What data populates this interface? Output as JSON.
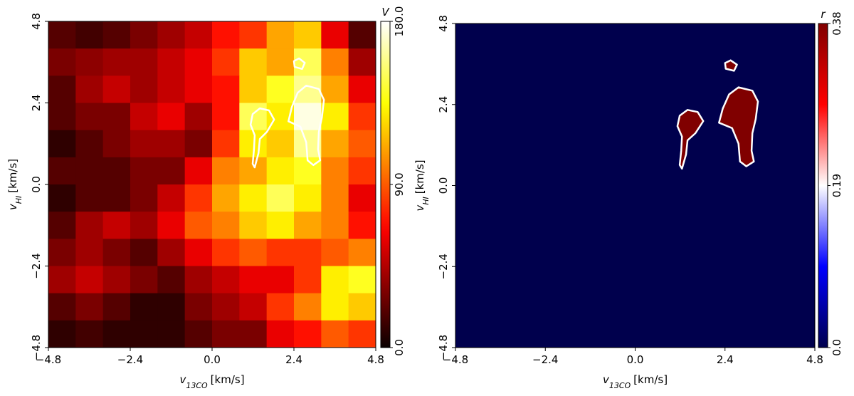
{
  "chart_data": [
    {
      "type": "heatmap",
      "colormap": "hot",
      "colorbar_label": "V",
      "xlabel": {
        "symbol": "v",
        "subscript": "13CO",
        "unit": "[km/s]"
      },
      "ylabel": {
        "symbol": "v",
        "subscript": "HI",
        "unit": "[km/s]"
      },
      "xlim": [
        -4.8,
        4.8
      ],
      "ylim": [
        -4.8,
        4.8
      ],
      "xticks": [
        {
          "value": -4.8,
          "label": "−4.8"
        },
        {
          "value": -2.4,
          "label": "−2.4"
        },
        {
          "value": 0,
          "label": "0.0"
        },
        2.4,
        4.8
      ],
      "yticks": [
        {
          "value": -4.8,
          "label": "−4.8"
        },
        {
          "value": -2.4,
          "label": "−2.4"
        },
        {
          "value": 0,
          "label": "0.0"
        },
        2.4,
        4.8
      ],
      "clim": [
        0,
        180
      ],
      "cticks": [
        {
          "value": 0,
          "label": "0.0"
        },
        {
          "value": 90,
          "label": "90.0"
        },
        {
          "value": 180,
          "label": "180.0"
        }
      ],
      "values": [
        [
          20,
          15,
          20,
          30,
          40,
          50,
          70,
          80,
          110,
          120,
          60,
          20
        ],
        [
          30,
          35,
          40,
          40,
          50,
          60,
          80,
          120,
          110,
          150,
          100,
          40
        ],
        [
          20,
          40,
          50,
          40,
          50,
          60,
          70,
          120,
          140,
          160,
          110,
          60
        ],
        [
          20,
          30,
          30,
          50,
          60,
          40,
          70,
          150,
          130,
          175,
          130,
          80
        ],
        [
          10,
          20,
          30,
          40,
          40,
          30,
          80,
          130,
          120,
          160,
          110,
          90
        ],
        [
          20,
          20,
          20,
          30,
          30,
          60,
          100,
          110,
          130,
          140,
          100,
          80
        ],
        [
          10,
          20,
          20,
          30,
          50,
          80,
          110,
          130,
          150,
          130,
          100,
          60
        ],
        [
          20,
          40,
          50,
          40,
          60,
          90,
          100,
          120,
          130,
          110,
          100,
          70
        ],
        [
          30,
          40,
          30,
          20,
          40,
          60,
          80,
          90,
          80,
          80,
          90,
          100
        ],
        [
          40,
          50,
          40,
          30,
          20,
          40,
          50,
          60,
          60,
          80,
          130,
          140
        ],
        [
          20,
          30,
          20,
          10,
          10,
          30,
          40,
          50,
          80,
          100,
          130,
          120
        ],
        [
          10,
          15,
          10,
          10,
          10,
          20,
          30,
          30,
          60,
          70,
          90,
          80
        ]
      ],
      "contours": [
        {
          "x": [
            2.76,
            3.13,
            3.28,
            3.22,
            3.13,
            3.11,
            3.17,
            2.97,
            2.8,
            2.76,
            2.59,
            2.24,
            2.34,
            2.51
          ],
          "y": [
            2.91,
            2.81,
            2.49,
            1.97,
            1.55,
            1.03,
            0.71,
            0.57,
            0.71,
            1.24,
            1.7,
            1.86,
            2.28,
            2.7
          ]
        },
        {
          "x": [
            1.4,
            1.67,
            1.82,
            1.61,
            1.4,
            1.36,
            1.25,
            1.19,
            1.23,
            1.25,
            1.13,
            1.19
          ],
          "y": [
            2.24,
            2.18,
            1.91,
            1.55,
            1.34,
            0.92,
            0.5,
            0.61,
            1.03,
            1.45,
            1.76,
            2.07
          ]
        },
        {
          "x": [
            2.55,
            2.72,
            2.64,
            2.42,
            2.4
          ],
          "y": [
            3.71,
            3.58,
            3.4,
            3.46,
            3.63
          ]
        }
      ]
    },
    {
      "type": "heatmap",
      "colormap": "seismic",
      "colorbar_label": "r",
      "xlabel": {
        "symbol": "v",
        "subscript": "13CO",
        "unit": "[km/s]"
      },
      "ylabel": {
        "symbol": "v",
        "subscript": "HI",
        "unit": "[km/s]"
      },
      "xlim": [
        -4.8,
        4.8
      ],
      "ylim": [
        -4.8,
        4.8
      ],
      "xticks": [
        {
          "value": -4.8,
          "label": "−4.8"
        },
        {
          "value": -2.4,
          "label": "−2.4"
        },
        {
          "value": 0,
          "label": "0.0"
        },
        2.4,
        4.8
      ],
      "yticks": [
        {
          "value": -4.8,
          "label": "−4.8"
        },
        {
          "value": -2.4,
          "label": "−2.4"
        },
        {
          "value": 0,
          "label": "0.0"
        },
        2.4,
        4.8
      ],
      "clim": [
        0,
        0.38
      ],
      "cticks": [
        {
          "value": 0,
          "label": "0.0"
        },
        0.19,
        0.38
      ],
      "values": [
        [
          0
        ]
      ],
      "contours": [
        {
          "value": 0.38,
          "x": [
            2.76,
            3.13,
            3.28,
            3.22,
            3.13,
            3.11,
            3.17,
            2.97,
            2.8,
            2.76,
            2.59,
            2.24,
            2.34,
            2.51
          ],
          "y": [
            2.91,
            2.81,
            2.49,
            1.97,
            1.55,
            1.03,
            0.71,
            0.57,
            0.71,
            1.24,
            1.7,
            1.86,
            2.28,
            2.7
          ]
        },
        {
          "value": 0.38,
          "x": [
            1.4,
            1.67,
            1.82,
            1.61,
            1.4,
            1.36,
            1.25,
            1.19,
            1.23,
            1.25,
            1.13,
            1.19
          ],
          "y": [
            2.24,
            2.18,
            1.91,
            1.55,
            1.34,
            0.92,
            0.5,
            0.61,
            1.03,
            1.45,
            1.76,
            2.07
          ]
        },
        {
          "value": 0.38,
          "x": [
            2.55,
            2.72,
            2.64,
            2.42,
            2.4
          ],
          "y": [
            3.71,
            3.58,
            3.4,
            3.46,
            3.63
          ]
        }
      ]
    }
  ]
}
